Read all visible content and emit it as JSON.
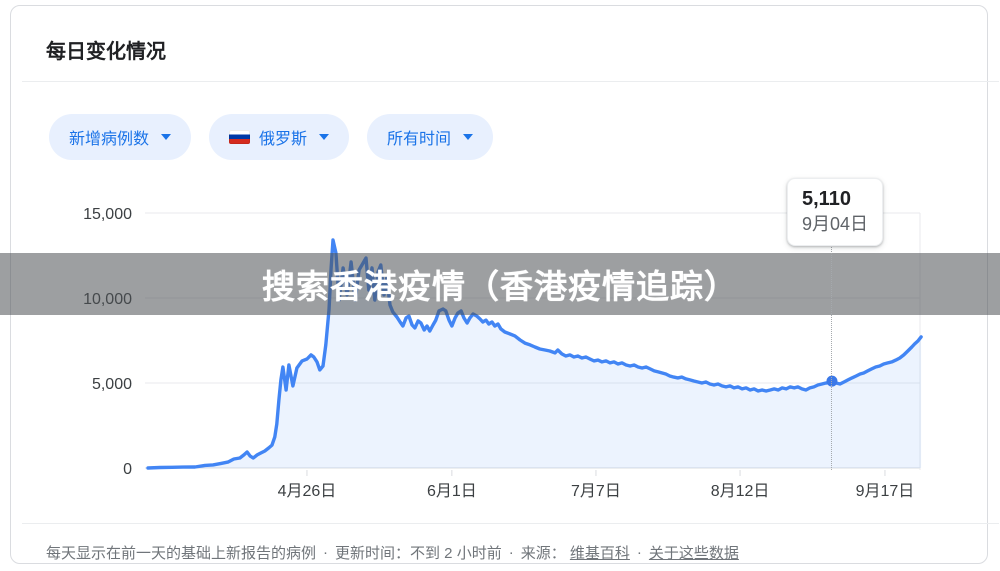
{
  "card": {
    "title": "每日变化情况",
    "filters": {
      "metric": {
        "label": "新增病例数"
      },
      "region": {
        "label": "俄罗斯",
        "flag": "russia-flag"
      },
      "time": {
        "label": "所有时间"
      }
    },
    "footer": {
      "description": "每天显示在前一天的基础上新报告的病例",
      "separator": "·",
      "updated": "更新时间：不到 2 小时前",
      "source_label": "来源：",
      "source_link": "维基百科",
      "about_link": "关于这些数据"
    }
  },
  "watermark": {
    "text": "搜索香港疫情（香港疫情追踪）"
  },
  "tooltip": {
    "value": "5,110",
    "date": "9月04日"
  },
  "colors": {
    "accent": "#1a73e8",
    "chip_bg": "#e8f0fe",
    "line": "#4285f4",
    "area_fill": "rgba(66,133,244,0.10)",
    "grid": "#e8eaed",
    "axis_zero": "#dadce0",
    "axis_text": "#3c4043",
    "footer_text": "#70757a",
    "watermark_band": "rgba(76,80,84,0.55)"
  },
  "chart_data": {
    "type": "area",
    "title": "每日变化情况",
    "series_name": "新增病例数",
    "region": "俄罗斯",
    "time_range": "所有时间",
    "ylim": [
      0,
      15000
    ],
    "grid": true,
    "y_ticks": [
      {
        "label": "0",
        "value": 0
      },
      {
        "label": "5,000",
        "value": 5000
      },
      {
        "label": "10,000",
        "value": 10000
      },
      {
        "label": "15,000",
        "value": 15000
      }
    ],
    "x_ticks": [
      {
        "label": "4月26日",
        "day": 39.6
      },
      {
        "label": "6月1日",
        "day": 75.7
      },
      {
        "label": "7月7日",
        "day": 111.6
      },
      {
        "label": "8月12日",
        "day": 147.5
      },
      {
        "label": "9月17日",
        "day": 183.6
      }
    ],
    "highlight": {
      "day": 170.4,
      "value": 5110,
      "label_value": "5,110",
      "label_date": "9月04日"
    },
    "points": [
      [
        0,
        0
      ],
      [
        3,
        30
      ],
      [
        6,
        40
      ],
      [
        8.7,
        50
      ],
      [
        11.7,
        60
      ],
      [
        14.2,
        150
      ],
      [
        16.2,
        180
      ],
      [
        18.2,
        270
      ],
      [
        19.9,
        350
      ],
      [
        21.4,
        530
      ],
      [
        22.9,
        590
      ],
      [
        23.9,
        770
      ],
      [
        24.7,
        940
      ],
      [
        25.4,
        710
      ],
      [
        26.2,
        590
      ],
      [
        27.2,
        770
      ],
      [
        28.1,
        880
      ],
      [
        29.1,
        1000
      ],
      [
        30.1,
        1180
      ],
      [
        30.9,
        1350
      ],
      [
        31.6,
        1830
      ],
      [
        32.1,
        2590
      ],
      [
        32.6,
        4000
      ],
      [
        33.1,
        5180
      ],
      [
        33.6,
        5940
      ],
      [
        34.4,
        4590
      ],
      [
        35.1,
        6060
      ],
      [
        36.1,
        4830
      ],
      [
        37.1,
        5880
      ],
      [
        38.4,
        6300
      ],
      [
        39.6,
        6410
      ],
      [
        40.6,
        6650
      ],
      [
        41.3,
        6530
      ],
      [
        42.1,
        6240
      ],
      [
        42.8,
        5770
      ],
      [
        43.6,
        6000
      ],
      [
        44.3,
        7240
      ],
      [
        45.1,
        9300
      ],
      [
        45.6,
        11650
      ],
      [
        46.1,
        13410
      ],
      [
        46.8,
        12650
      ],
      [
        47.6,
        9880
      ],
      [
        48.6,
        11770
      ],
      [
        49.6,
        10180
      ],
      [
        50.6,
        12120
      ],
      [
        51.6,
        9880
      ],
      [
        52.6,
        11650
      ],
      [
        53.6,
        12060
      ],
      [
        54.3,
        12350
      ],
      [
        55,
        10470
      ],
      [
        55.8,
        11770
      ],
      [
        56.5,
        9880
      ],
      [
        57.3,
        11530
      ],
      [
        58,
        11940
      ],
      [
        58.8,
        10180
      ],
      [
        59.5,
        11180
      ],
      [
        60.3,
        9590
      ],
      [
        61,
        9180
      ],
      [
        62,
        8880
      ],
      [
        62.8,
        8590
      ],
      [
        63.5,
        8350
      ],
      [
        64.3,
        8830
      ],
      [
        65,
        8940
      ],
      [
        65.8,
        8410
      ],
      [
        66.5,
        8240
      ],
      [
        67.3,
        8650
      ],
      [
        68,
        8530
      ],
      [
        68.8,
        8120
      ],
      [
        69.5,
        8350
      ],
      [
        70.2,
        8060
      ],
      [
        71,
        8410
      ],
      [
        71.7,
        8700
      ],
      [
        72.5,
        9240
      ],
      [
        73.5,
        9350
      ],
      [
        74.2,
        9240
      ],
      [
        75,
        8700
      ],
      [
        75.7,
        8350
      ],
      [
        76.5,
        8830
      ],
      [
        77.2,
        9120
      ],
      [
        78,
        9240
      ],
      [
        78.7,
        8830
      ],
      [
        79.5,
        8530
      ],
      [
        80.2,
        8830
      ],
      [
        81,
        9060
      ],
      [
        81.9,
        8940
      ],
      [
        82.7,
        8770
      ],
      [
        83.4,
        8590
      ],
      [
        84.2,
        8700
      ],
      [
        84.9,
        8470
      ],
      [
        85.7,
        8590
      ],
      [
        86.4,
        8350
      ],
      [
        87.2,
        8470
      ],
      [
        87.9,
        8180
      ],
      [
        88.9,
        8000
      ],
      [
        90.2,
        7880
      ],
      [
        91.4,
        7770
      ],
      [
        92.7,
        7530
      ],
      [
        93.9,
        7350
      ],
      [
        95.2,
        7240
      ],
      [
        96.4,
        7120
      ],
      [
        97.6,
        7000
      ],
      [
        98.9,
        6940
      ],
      [
        100.1,
        6880
      ],
      [
        101.4,
        6770
      ],
      [
        102.1,
        6940
      ],
      [
        103.1,
        6710
      ],
      [
        104.1,
        6590
      ],
      [
        105.1,
        6650
      ],
      [
        106.1,
        6530
      ],
      [
        107.1,
        6590
      ],
      [
        108.1,
        6470
      ],
      [
        109.1,
        6530
      ],
      [
        110.1,
        6410
      ],
      [
        111.1,
        6300
      ],
      [
        112.1,
        6350
      ],
      [
        113.1,
        6240
      ],
      [
        114.1,
        6300
      ],
      [
        115.1,
        6180
      ],
      [
        116.1,
        6240
      ],
      [
        117.1,
        6120
      ],
      [
        118.1,
        6180
      ],
      [
        119.1,
        6060
      ],
      [
        120.1,
        6000
      ],
      [
        121.1,
        6060
      ],
      [
        122.1,
        5940
      ],
      [
        123.1,
        5880
      ],
      [
        124.1,
        5940
      ],
      [
        125.1,
        5830
      ],
      [
        126.1,
        5710
      ],
      [
        127.1,
        5650
      ],
      [
        128.1,
        5590
      ],
      [
        129,
        5530
      ],
      [
        130,
        5410
      ],
      [
        131,
        5350
      ],
      [
        132,
        5300
      ],
      [
        133,
        5350
      ],
      [
        134,
        5240
      ],
      [
        135,
        5180
      ],
      [
        136,
        5120
      ],
      [
        137,
        5060
      ],
      [
        138,
        5000
      ],
      [
        139,
        5060
      ],
      [
        140,
        4940
      ],
      [
        141,
        4880
      ],
      [
        142,
        4940
      ],
      [
        143,
        4830
      ],
      [
        144,
        4770
      ],
      [
        145,
        4830
      ],
      [
        146,
        4710
      ],
      [
        147,
        4770
      ],
      [
        148,
        4650
      ],
      [
        149,
        4710
      ],
      [
        150,
        4590
      ],
      [
        151,
        4650
      ],
      [
        152,
        4530
      ],
      [
        153,
        4590
      ],
      [
        154,
        4530
      ],
      [
        155,
        4590
      ],
      [
        156,
        4650
      ],
      [
        157,
        4590
      ],
      [
        158,
        4710
      ],
      [
        159,
        4650
      ],
      [
        160,
        4770
      ],
      [
        161,
        4710
      ],
      [
        161.9,
        4770
      ],
      [
        162.9,
        4650
      ],
      [
        163.9,
        4590
      ],
      [
        164.9,
        4710
      ],
      [
        165.9,
        4770
      ],
      [
        166.9,
        4880
      ],
      [
        167.9,
        4940
      ],
      [
        168.9,
        5000
      ],
      [
        169.9,
        5030
      ],
      [
        170.4,
        5110
      ],
      [
        171.4,
        5000
      ],
      [
        172.4,
        4940
      ],
      [
        173.4,
        5060
      ],
      [
        174.4,
        5180
      ],
      [
        175.4,
        5300
      ],
      [
        176.4,
        5410
      ],
      [
        177.4,
        5530
      ],
      [
        178.3,
        5590
      ],
      [
        179.3,
        5710
      ],
      [
        180.3,
        5830
      ],
      [
        181.3,
        5940
      ],
      [
        182.3,
        6000
      ],
      [
        183.3,
        6120
      ],
      [
        184.3,
        6180
      ],
      [
        185.3,
        6240
      ],
      [
        186.3,
        6350
      ],
      [
        187.3,
        6470
      ],
      [
        188.3,
        6650
      ],
      [
        189.3,
        6880
      ],
      [
        190.3,
        7120
      ],
      [
        191,
        7300
      ],
      [
        191.8,
        7470
      ],
      [
        192.6,
        7710
      ]
    ]
  }
}
